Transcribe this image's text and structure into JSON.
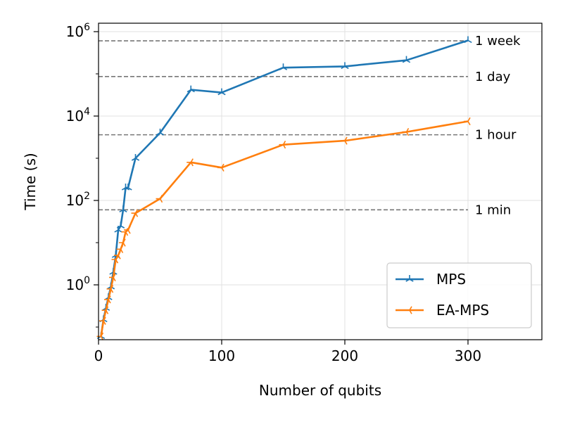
{
  "chart_data": {
    "type": "line",
    "xlabel": "Number of qubits",
    "ylabel": "Time (s)",
    "xlim": [
      0,
      360
    ],
    "ylim_log10": [
      -1.3,
      6.2
    ],
    "y_scale": "log",
    "grid": true,
    "legend_position": "lower-right",
    "x_ticks": [
      {
        "value": 0,
        "label": "0"
      },
      {
        "value": 100,
        "label": "100"
      },
      {
        "value": 200,
        "label": "200"
      },
      {
        "value": 300,
        "label": "300"
      }
    ],
    "y_ticks": [
      {
        "exp": 0,
        "base": "10",
        "sup": "0"
      },
      {
        "exp": 2,
        "base": "10",
        "sup": "2"
      },
      {
        "exp": 4,
        "base": "10",
        "sup": "4"
      },
      {
        "exp": 6,
        "base": "10",
        "sup": "6"
      }
    ],
    "reference_lines": [
      {
        "label": "1 min",
        "value": 60
      },
      {
        "label": "1 hour",
        "value": 3600
      },
      {
        "label": "1 day",
        "value": 86400
      },
      {
        "label": "1 week",
        "value": 604800
      }
    ],
    "series": [
      {
        "name": "MPS",
        "color": "#1f77b4",
        "marker": "tri-up",
        "x": [
          2,
          4,
          6,
          8,
          10,
          12,
          14,
          16,
          18,
          20,
          22,
          24,
          30,
          50,
          75,
          100,
          150,
          200,
          250,
          300
        ],
        "y": [
          0.06,
          0.15,
          0.28,
          0.5,
          0.9,
          2,
          5,
          20,
          25,
          60,
          200,
          200,
          1000,
          4000,
          42000,
          36000,
          140000,
          150000,
          210000,
          620000
        ]
      },
      {
        "name": "EA-MPS",
        "color": "#ff7f0e",
        "marker": "tri-left",
        "x": [
          2,
          4,
          6,
          8,
          10,
          12,
          14,
          16,
          18,
          20,
          22,
          24,
          30,
          50,
          75,
          100,
          150,
          200,
          250,
          300
        ],
        "y": [
          0.06,
          0.14,
          0.25,
          0.45,
          0.8,
          1.5,
          4,
          5,
          7,
          10,
          18,
          20,
          50,
          110,
          800,
          600,
          2100,
          2600,
          4200,
          7500
        ]
      }
    ]
  }
}
